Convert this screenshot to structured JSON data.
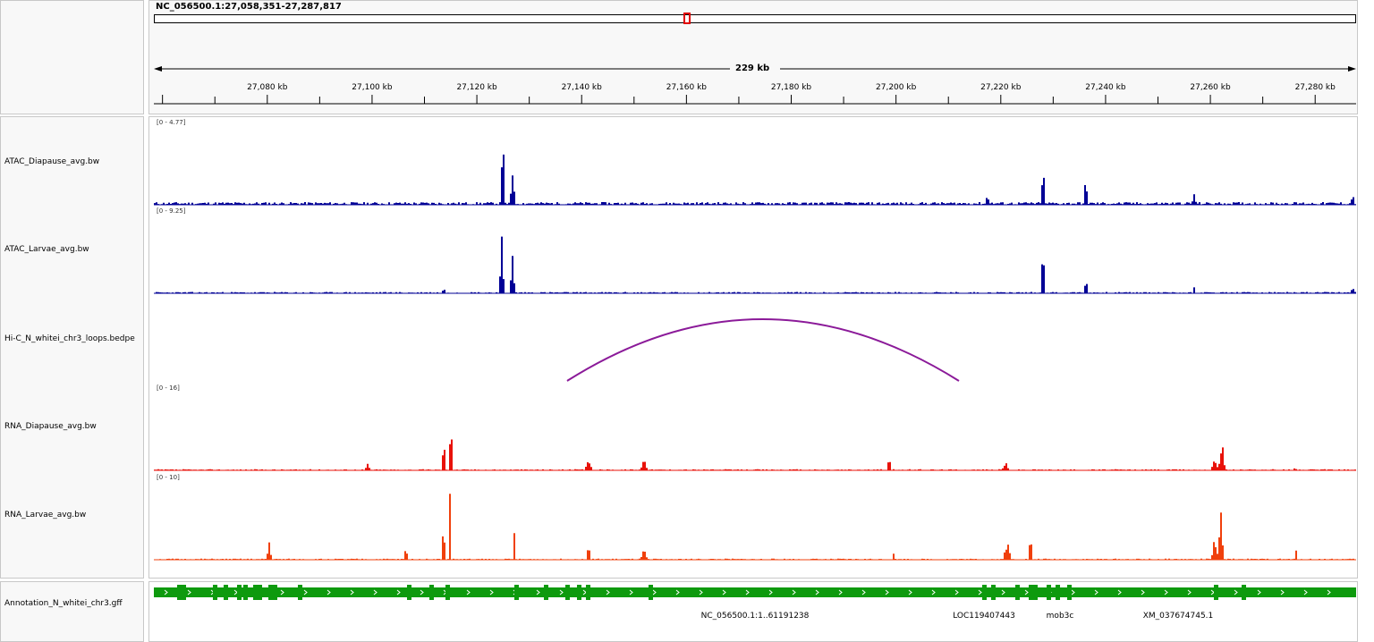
{
  "locus": "NC_056500.1:27,058,351-27,287,817",
  "ruler": {
    "span_label": "229 kb",
    "tick_labels": [
      {
        "label": "27,080 kb",
        "pos": 27080
      },
      {
        "label": "27,100 kb",
        "pos": 27100
      },
      {
        "label": "27,120 kb",
        "pos": 27120
      },
      {
        "label": "27,140 kb",
        "pos": 27140
      },
      {
        "label": "27,160 kb",
        "pos": 27160
      },
      {
        "label": "27,180 kb",
        "pos": 27180
      },
      {
        "label": "27,200 kb",
        "pos": 27200
      },
      {
        "label": "27,220 kb",
        "pos": 27220
      },
      {
        "label": "27,240 kb",
        "pos": 27240
      },
      {
        "label": "27,260 kb",
        "pos": 27260
      },
      {
        "label": "27,280 kb",
        "pos": 27280
      }
    ]
  },
  "tracks": {
    "atac_diapause": {
      "name": "ATAC_Diapause_avg.bw",
      "range": "[0 - 4.77]",
      "color": "#000096"
    },
    "atac_larvae": {
      "name": "ATAC_Larvae_avg.bw",
      "range": "[0 - 9.25]",
      "color": "#000096"
    },
    "hic": {
      "name": "Hi-C_N_whitei_chr3_loops.bedpe",
      "color": "#8b1a99"
    },
    "rna_diapause": {
      "name": "RNA_Diapause_avg.bw",
      "range": "[0 - 16]",
      "color": "#e8120a"
    },
    "rna_larvae": {
      "name": "RNA_Larvae_avg.bw",
      "range": "[0 - 10]",
      "color": "#f0400c"
    },
    "annotation": {
      "name": "Annotation_N_whitei_chr3.gff",
      "color": "#0e9a0e",
      "features": [
        {
          "label": "NC_056500.1:1..61191238",
          "pos": 27173
        },
        {
          "label": "LOC119407443",
          "pos": 27223
        },
        {
          "label": "mob3c",
          "pos": 27243
        },
        {
          "label": "XM_037674745.1",
          "pos": 27263
        }
      ]
    }
  }
}
